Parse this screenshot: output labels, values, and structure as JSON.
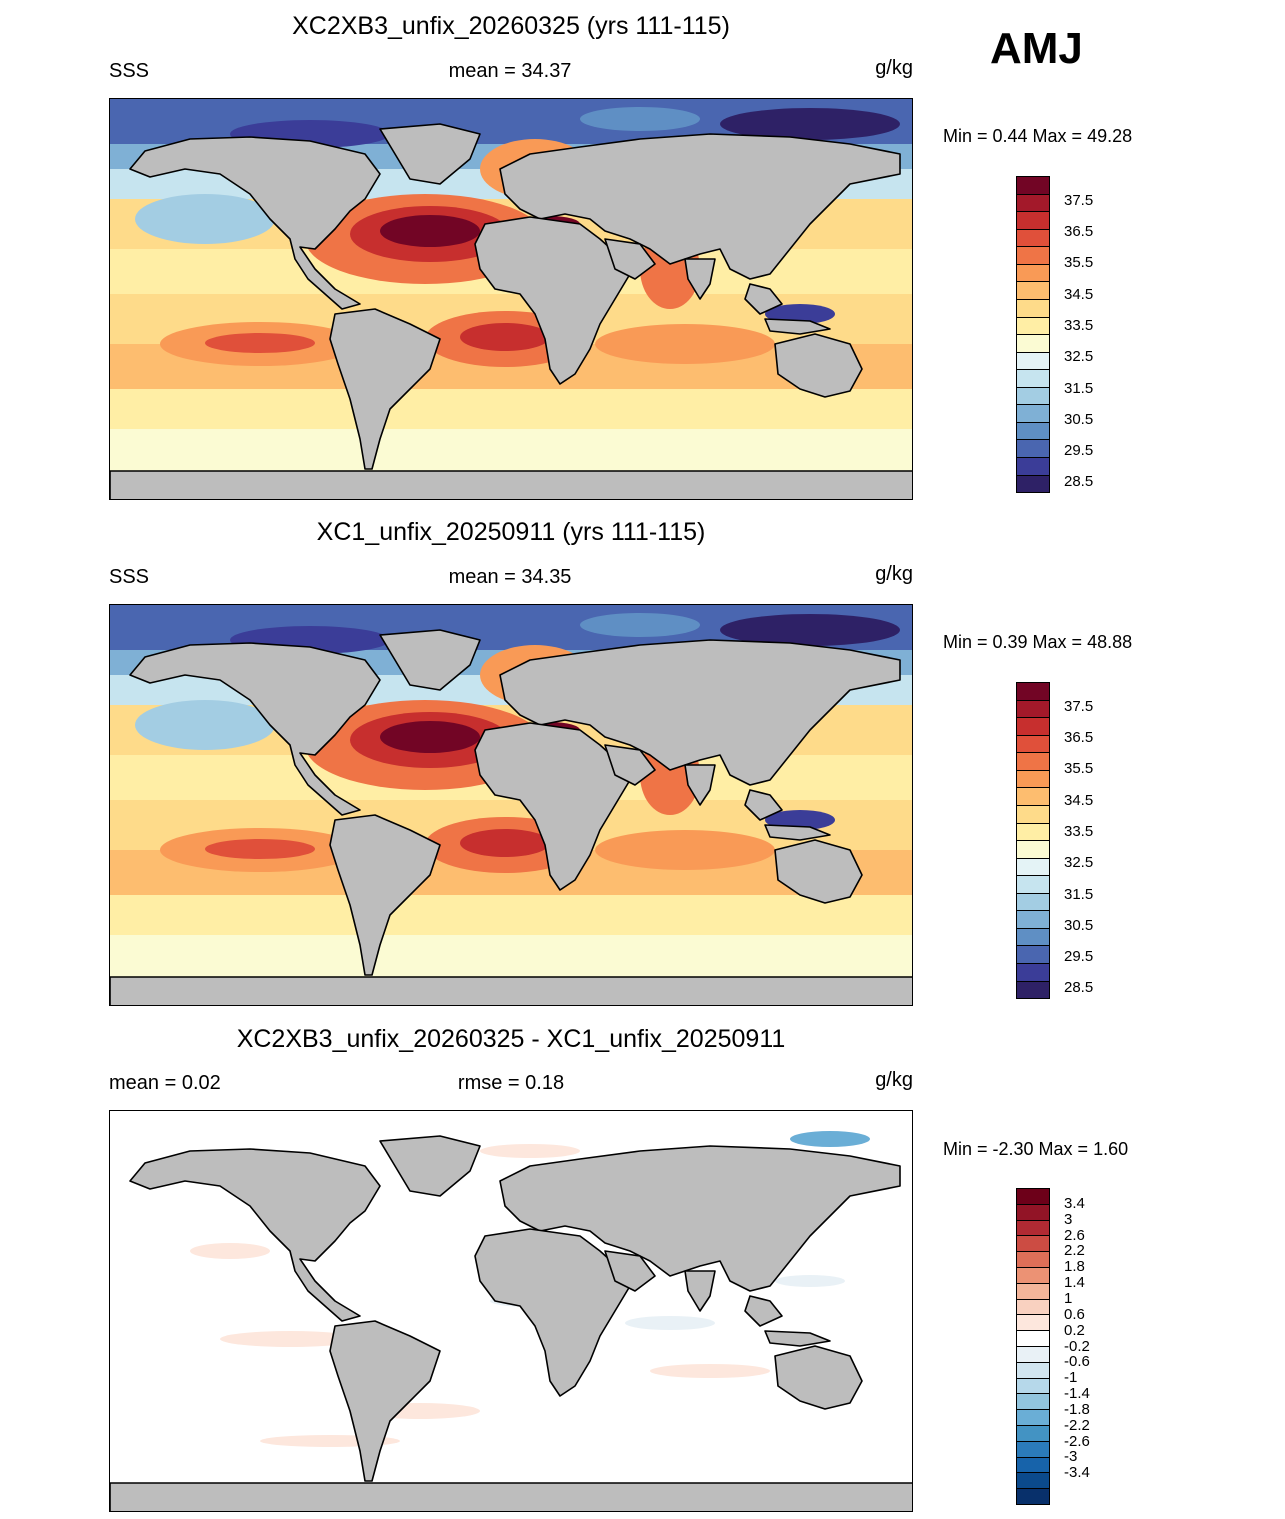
{
  "season": "AMJ",
  "colors": {
    "land": "#bdbdbd",
    "coast": "#000000",
    "abs_scale": [
      "#2e2166",
      "#3b3d98",
      "#4a66b0",
      "#5f8fc4",
      "#7fb0d5",
      "#a3cde3",
      "#c6e4ef",
      "#e4f3f6",
      "#fbfbd3",
      "#ffeea5",
      "#fedb8a",
      "#fdbd6f",
      "#f99a56",
      "#ef7446",
      "#e0503a",
      "#c72f2e",
      "#a3192a",
      "#720525"
    ],
    "diff_scale": [
      "#08306b",
      "#0b4a8c",
      "#1763aa",
      "#2b7bba",
      "#4393c3",
      "#6aaed6",
      "#92c5de",
      "#b6d8ea",
      "#d1e5f0",
      "#e9f1f6",
      "#ffffff",
      "#fde7dd",
      "#f9d1c0",
      "#f4b59a",
      "#ec9274",
      "#de6f58",
      "#cc4c43",
      "#b12a33",
      "#921426",
      "#6d0019"
    ]
  },
  "panels": [
    {
      "title": "XC2XB3_unfix_20260325 (yrs 111-115)",
      "left_label": "SSS",
      "center_label": "mean =  34.37",
      "units": "g/kg",
      "minmax": "Min =   0.44 Max =  49.28",
      "colorbar_labels": [
        "37.5",
        "36.5",
        "35.5",
        "34.5",
        "33.5",
        "32.5",
        "31.5",
        "30.5",
        "29.5",
        "28.5"
      ]
    },
    {
      "title": "XC1_unfix_20250911 (yrs 111-115)",
      "left_label": "SSS",
      "center_label": "mean =  34.35",
      "units": "g/kg",
      "minmax": "Min =   0.39 Max =  48.88",
      "colorbar_labels": [
        "37.5",
        "36.5",
        "35.5",
        "34.5",
        "33.5",
        "32.5",
        "31.5",
        "30.5",
        "29.5",
        "28.5"
      ]
    },
    {
      "title": "XC2XB3_unfix_20260325 - XC1_unfix_20250911",
      "left_label": "mean =   0.02",
      "center_label": "rmse =   0.18",
      "units": "g/kg",
      "minmax": "Min =  -2.30 Max =   1.60",
      "colorbar_labels": [
        "3.4",
        "3",
        "2.6",
        "2.2",
        "1.8",
        "1.4",
        "1",
        "0.6",
        "0.2",
        "-0.2",
        "-0.6",
        "-1",
        "-1.4",
        "-1.8",
        "-2.2",
        "-2.6",
        "-3",
        "-3.4"
      ]
    }
  ]
}
